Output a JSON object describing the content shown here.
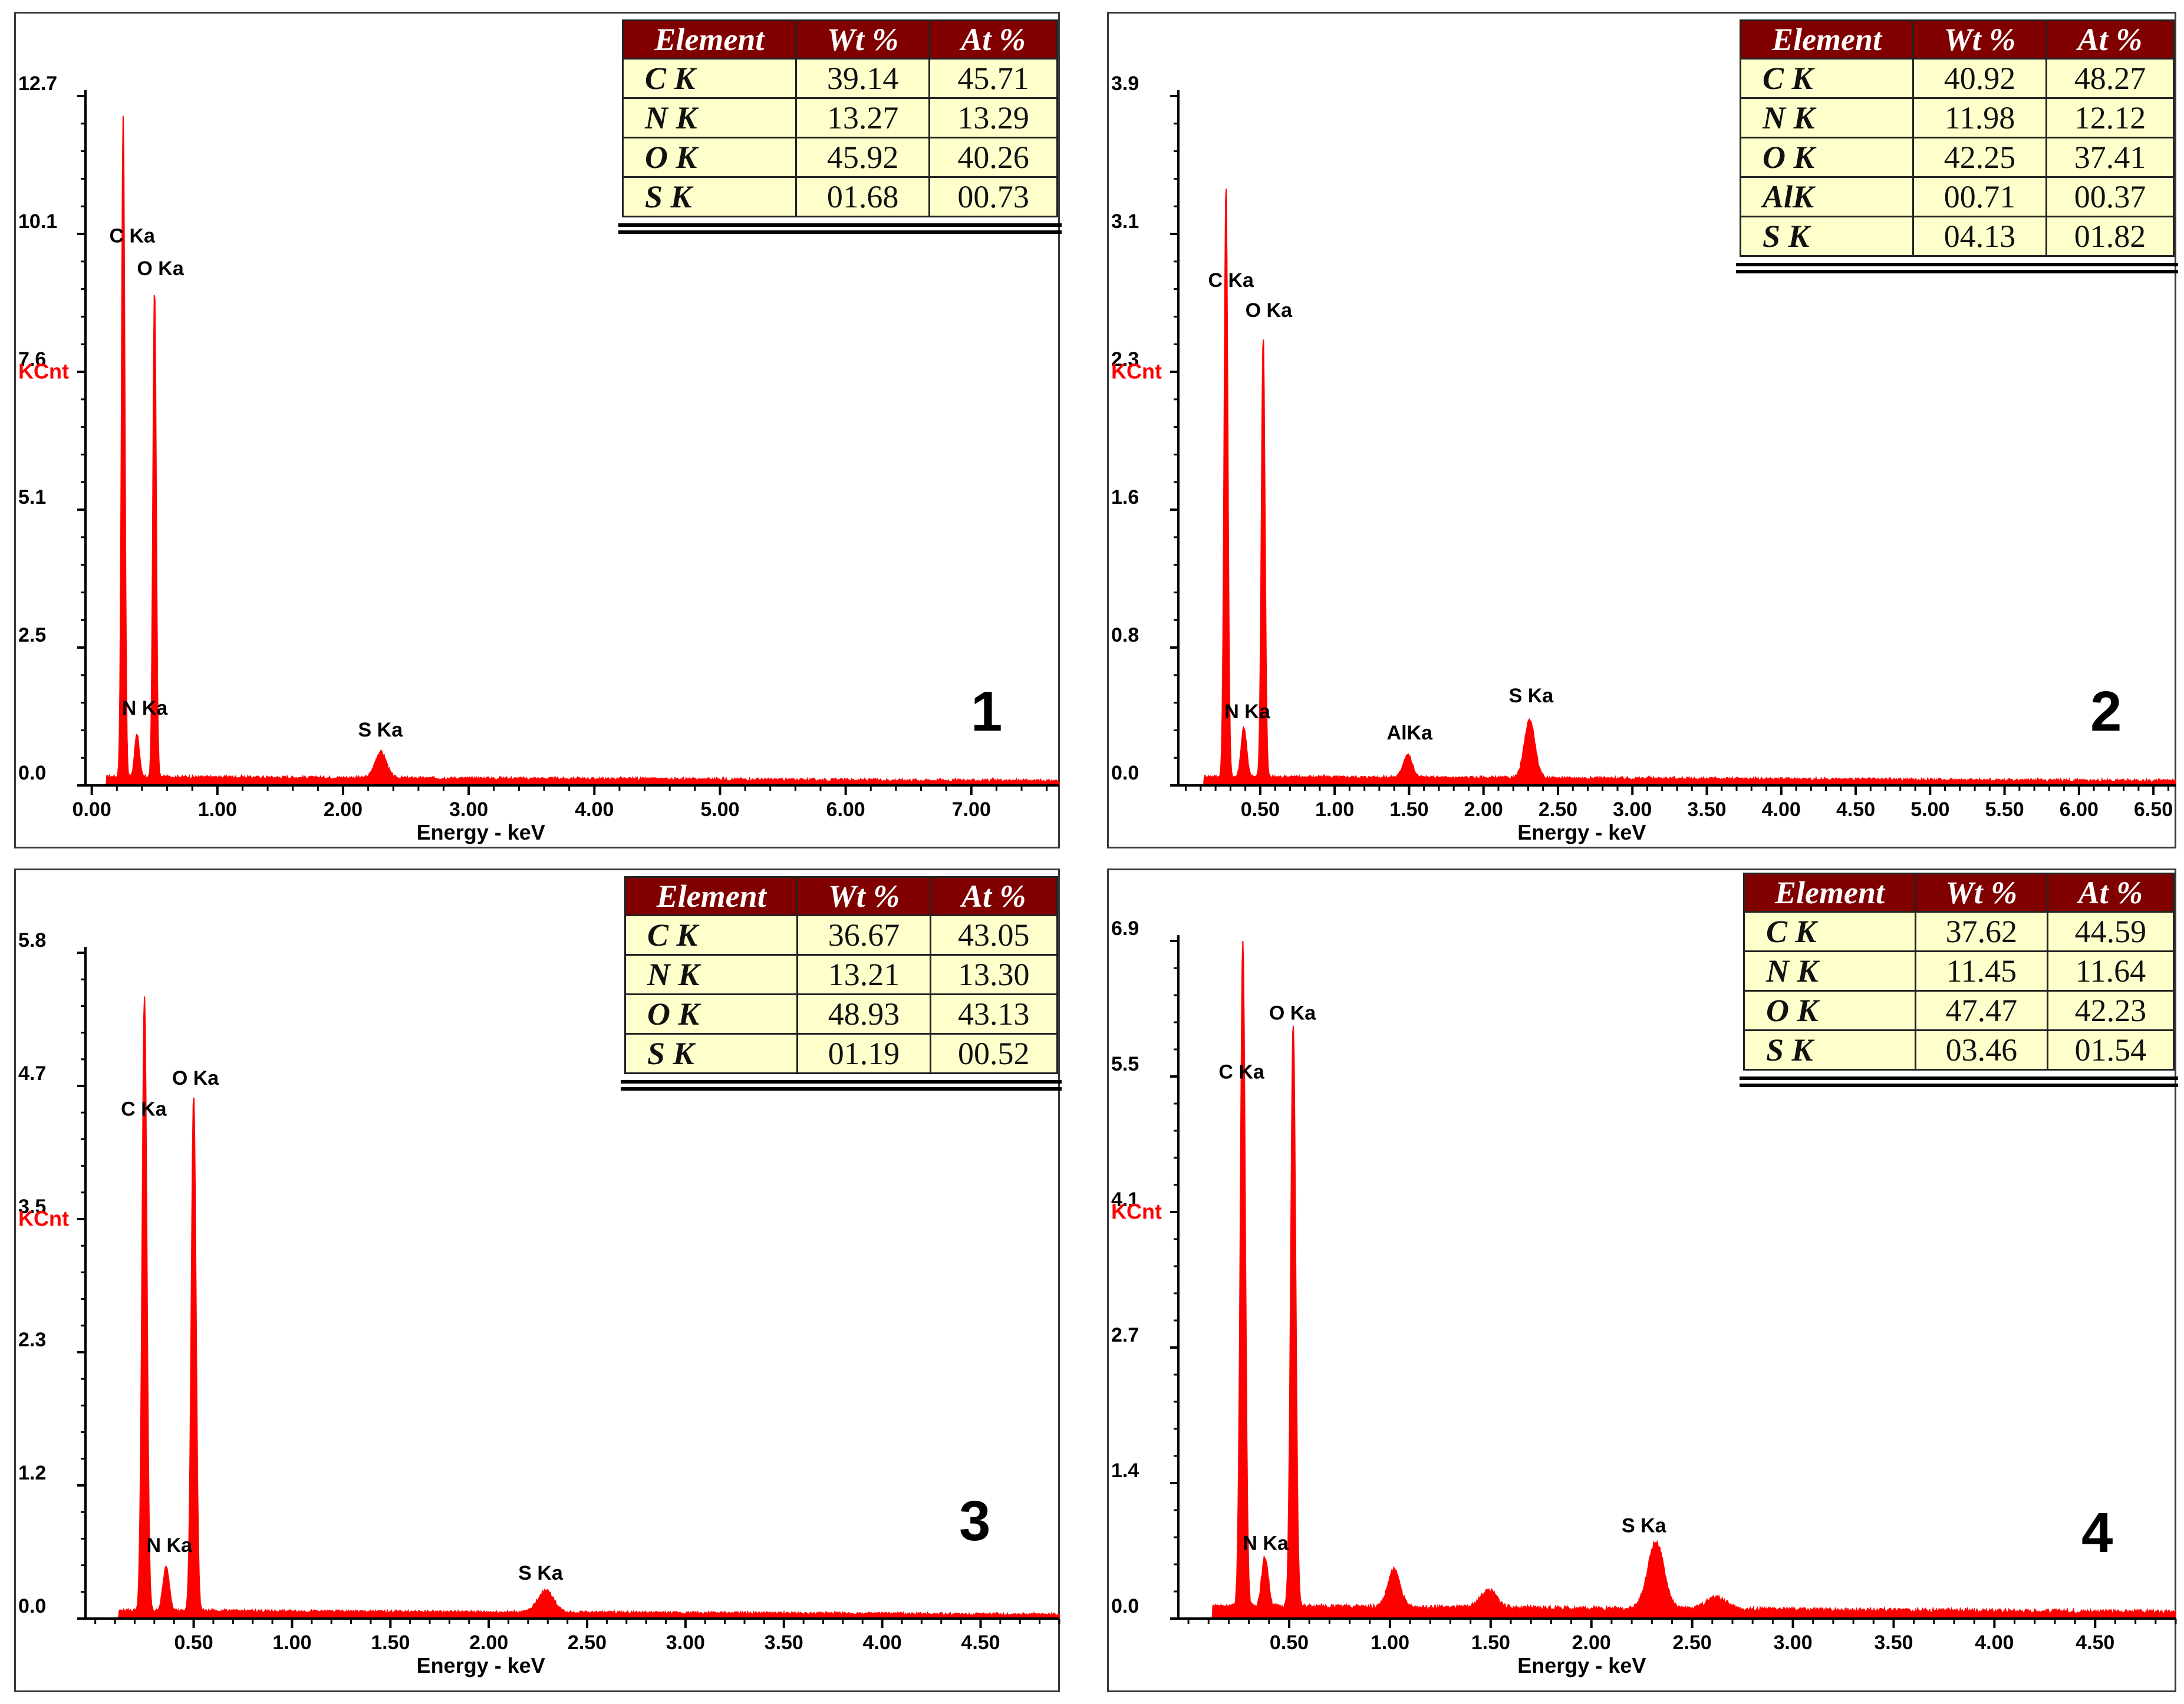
{
  "colors": {
    "spectrum": "#ff0000",
    "header_bg": "#800000",
    "table_bg": "#ffffcc",
    "axis": "#000000"
  },
  "chart_data": [
    {
      "panel_number": "1",
      "type": "line",
      "ylabel": "KCnt",
      "xlabel": "Energy - keV",
      "ylim": [
        0,
        12.7
      ],
      "xlim": [
        -0.05,
        7.7
      ],
      "yticks": [
        "0.0",
        "2.5",
        "5.1",
        "7.6",
        "10.1",
        "12.7"
      ],
      "xticks": [
        "0.00",
        "1.00",
        "2.00",
        "3.00",
        "4.00",
        "5.00",
        "6.00",
        "7.00"
      ],
      "background": 0.16,
      "peaks": [
        {
          "label": "C Ka",
          "x": 0.25,
          "y": 12.2,
          "w": 0.013
        },
        {
          "label": "O Ka",
          "x": 0.5,
          "y": 9.0,
          "w": 0.013
        },
        {
          "label": "N Ka",
          "x": 0.36,
          "y": 0.8,
          "w": 0.018
        },
        {
          "label": "S Ka",
          "x": 2.3,
          "y": 0.48,
          "w": 0.045
        }
      ],
      "peak_labels": [
        {
          "text": "C Ka",
          "x": 0.14,
          "y": 10.0
        },
        {
          "text": "O Ka",
          "x": 0.36,
          "y": 9.4
        },
        {
          "text": "N Ka",
          "x": 0.24,
          "y": 1.3
        },
        {
          "text": "S Ka",
          "x": 2.12,
          "y": 0.9
        }
      ],
      "table": {
        "headers": [
          "Element",
          "Wt %",
          "At %"
        ],
        "rows": [
          [
            "C K",
            "39.14",
            "45.71"
          ],
          [
            "N K",
            "13.27",
            "13.29"
          ],
          [
            "O K",
            "45.92",
            "40.26"
          ],
          [
            "S K",
            "01.68",
            "00.73"
          ]
        ]
      }
    },
    {
      "panel_number": "2",
      "type": "line",
      "ylabel": "KCnt",
      "xlabel": "Energy - keV",
      "ylim": [
        0,
        3.9
      ],
      "xlim": [
        -0.05,
        6.65
      ],
      "yticks": [
        "0.0",
        "0.8",
        "1.6",
        "2.3",
        "3.1",
        "3.9"
      ],
      "xticks": [
        "0.50",
        "1.00",
        "1.50",
        "2.00",
        "2.50",
        "3.00",
        "3.50",
        "4.00",
        "4.50",
        "5.00",
        "5.50",
        "6.00",
        "6.50"
      ],
      "background": 0.05,
      "peaks": [
        {
          "label": "C Ka",
          "x": 0.27,
          "y": 3.35,
          "w": 0.012
        },
        {
          "label": "O Ka",
          "x": 0.52,
          "y": 2.5,
          "w": 0.012
        },
        {
          "label": "N Ka",
          "x": 0.39,
          "y": 0.28,
          "w": 0.018
        },
        {
          "label": "AlKa",
          "x": 1.49,
          "y": 0.13,
          "w": 0.03
        },
        {
          "label": "S Ka",
          "x": 2.31,
          "y": 0.33,
          "w": 0.035
        }
      ],
      "peak_labels": [
        {
          "text": "C Ka",
          "x": 0.15,
          "y": 2.82
        },
        {
          "text": "O Ka",
          "x": 0.4,
          "y": 2.65
        },
        {
          "text": "N Ka",
          "x": 0.26,
          "y": 0.38
        },
        {
          "text": "AlKa",
          "x": 1.35,
          "y": 0.26
        },
        {
          "text": "S Ka",
          "x": 2.17,
          "y": 0.47
        }
      ],
      "table": {
        "headers": [
          "Element",
          "Wt %",
          "At %"
        ],
        "rows": [
          [
            "C K",
            "40.92",
            "48.27"
          ],
          [
            "N K",
            "11.98",
            "12.12"
          ],
          [
            "O K",
            "42.25",
            "37.41"
          ],
          [
            "AlK",
            "00.71",
            "00.37"
          ],
          [
            "S K",
            "04.13",
            "01.82"
          ]
        ]
      }
    },
    {
      "panel_number": "3",
      "type": "line",
      "ylabel": "KCnt",
      "xlabel": "Energy - keV",
      "ylim": [
        0,
        5.8
      ],
      "xlim": [
        -0.05,
        4.9
      ],
      "yticks": [
        "0.0",
        "1.2",
        "2.3",
        "3.5",
        "4.7",
        "5.8"
      ],
      "xticks": [
        "0.50",
        "1.00",
        "1.50",
        "2.00",
        "2.50",
        "3.00",
        "3.50",
        "4.00",
        "4.50"
      ],
      "background": 0.07,
      "peaks": [
        {
          "label": "C Ka",
          "x": 0.25,
          "y": 5.35,
          "w": 0.012
        },
        {
          "label": "O Ka",
          "x": 0.5,
          "y": 4.5,
          "w": 0.012
        },
        {
          "label": "N Ka",
          "x": 0.36,
          "y": 0.38,
          "w": 0.016
        },
        {
          "label": "S Ka",
          "x": 2.29,
          "y": 0.19,
          "w": 0.04
        }
      ],
      "peak_labels": [
        {
          "text": "C Ka",
          "x": 0.13,
          "y": 4.38
        },
        {
          "text": "O Ka",
          "x": 0.39,
          "y": 4.65
        },
        {
          "text": "N Ka",
          "x": 0.26,
          "y": 0.58
        },
        {
          "text": "S Ka",
          "x": 2.15,
          "y": 0.34
        }
      ],
      "table": {
        "headers": [
          "Element",
          "Wt %",
          "At %"
        ],
        "rows": [
          [
            "C K",
            "36.67",
            "43.05"
          ],
          [
            "N K",
            "13.21",
            "13.30"
          ],
          [
            "O K",
            "48.93",
            "43.13"
          ],
          [
            "S K",
            "01.19",
            "00.52"
          ]
        ]
      }
    },
    {
      "panel_number": "4",
      "type": "line",
      "ylabel": "KCnt",
      "xlabel": "Energy - keV",
      "ylim": [
        0,
        6.9
      ],
      "xlim": [
        -0.05,
        4.9
      ],
      "yticks": [
        "0.0",
        "1.4",
        "2.7",
        "4.1",
        "5.5",
        "6.9"
      ],
      "xticks": [
        "0.50",
        "1.00",
        "1.50",
        "2.00",
        "2.50",
        "3.00",
        "3.50",
        "4.00",
        "4.50"
      ],
      "background": 0.13,
      "peaks": [
        {
          "label": "C Ka",
          "x": 0.27,
          "y": 6.8,
          "w": 0.012
        },
        {
          "label": "O Ka",
          "x": 0.52,
          "y": 5.95,
          "w": 0.012
        },
        {
          "label": "N Ka",
          "x": 0.38,
          "y": 0.5,
          "w": 0.016
        },
        {
          "label": "",
          "x": 1.02,
          "y": 0.38,
          "w": 0.03
        },
        {
          "label": "",
          "x": 1.49,
          "y": 0.18,
          "w": 0.04
        },
        {
          "label": "S Ka",
          "x": 2.32,
          "y": 0.68,
          "w": 0.04
        },
        {
          "label": "",
          "x": 2.62,
          "y": 0.12,
          "w": 0.05
        }
      ],
      "peak_labels": [
        {
          "text": "C Ka",
          "x": 0.15,
          "y": 5.5
        },
        {
          "text": "O Ka",
          "x": 0.4,
          "y": 6.1
        },
        {
          "text": "N Ka",
          "x": 0.27,
          "y": 0.7
        },
        {
          "text": "S Ka",
          "x": 2.15,
          "y": 0.88
        }
      ],
      "table": {
        "headers": [
          "Element",
          "Wt %",
          "At %"
        ],
        "rows": [
          [
            "C K",
            "37.62",
            "44.59"
          ],
          [
            "N K",
            "11.45",
            "11.64"
          ],
          [
            "O K",
            "47.47",
            "42.23"
          ],
          [
            "S K",
            "03.46",
            "01.54"
          ]
        ]
      }
    }
  ]
}
